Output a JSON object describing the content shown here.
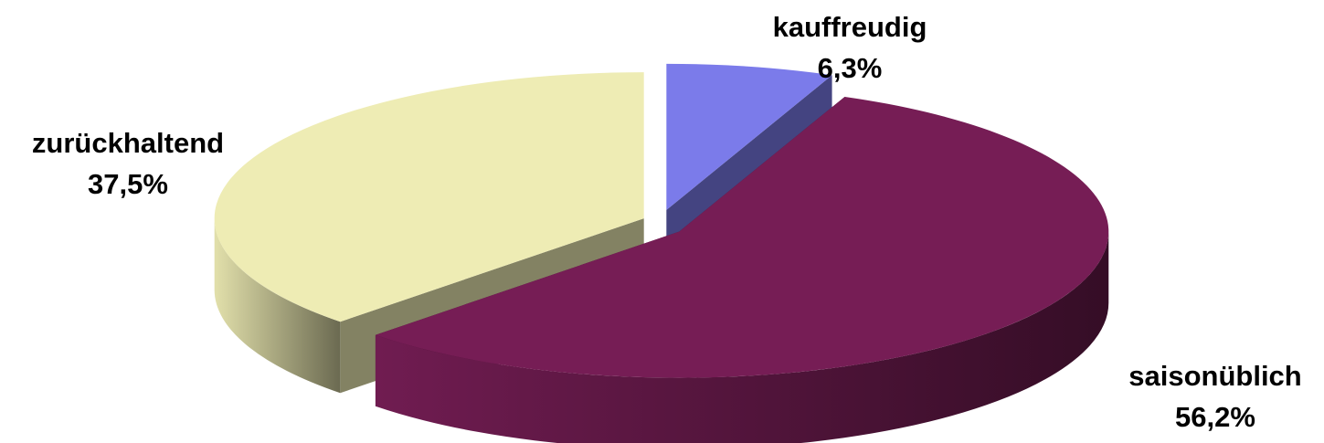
{
  "chart_data": {
    "type": "pie",
    "categories": [
      "kauffreudig",
      "saisonüblich",
      "zurückhaltend"
    ],
    "values": [
      6.3,
      56.2,
      37.5
    ],
    "value_labels": [
      "6,3%",
      "56,2%",
      "37,5%"
    ],
    "colors": [
      "#7b7bea",
      "#761d55",
      "#eeecb4"
    ]
  }
}
